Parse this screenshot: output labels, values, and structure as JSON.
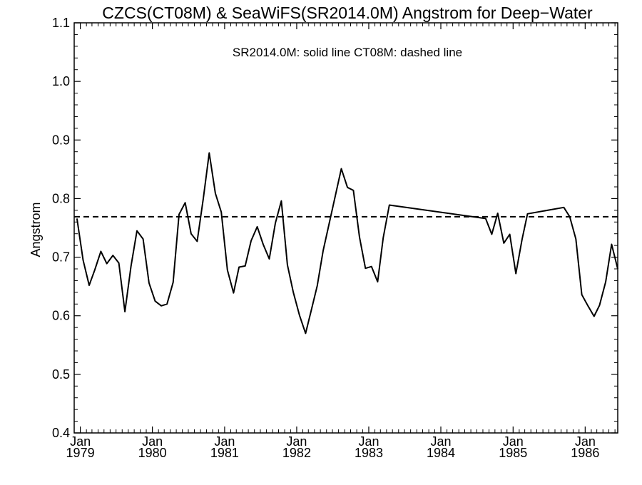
{
  "chart_data": {
    "type": "line",
    "title": "CZCS(CT08M) & SeaWiFS(SR2014.0M)  Angstrom for Deep−Water",
    "subtitle": "SR2014.0M: solid line   CT08M: dashed line",
    "ylabel": "Angstrom",
    "xlabel": "",
    "ylim": [
      0.4,
      1.1
    ],
    "xlim": [
      "1978-12-01",
      "1986-06-15"
    ],
    "yticks": [
      "0.4",
      "0.5",
      "0.6",
      "0.7",
      "0.8",
      "0.9",
      "1.0",
      "1.1"
    ],
    "xticks": [
      {
        "month": "Jan",
        "year": "1979",
        "date": "1979-01-01"
      },
      {
        "month": "Jan",
        "year": "1980",
        "date": "1980-01-01"
      },
      {
        "month": "Jan",
        "year": "1981",
        "date": "1981-01-01"
      },
      {
        "month": "Jan",
        "year": "1982",
        "date": "1982-01-01"
      },
      {
        "month": "Jan",
        "year": "1983",
        "date": "1983-01-01"
      },
      {
        "month": "Jan",
        "year": "1984",
        "date": "1984-01-01"
      },
      {
        "month": "Jan",
        "year": "1985",
        "date": "1985-01-01"
      },
      {
        "month": "Jan",
        "year": "1986",
        "date": "1986-01-01"
      }
    ],
    "grid": false,
    "series": [
      {
        "name": "SR2014.0M",
        "style": "solid",
        "color": "#000000",
        "x": [
          "1978-12-15",
          "1979-01-15",
          "1979-02-15",
          "1979-03-15",
          "1979-04-15",
          "1979-05-15",
          "1979-06-15",
          "1979-07-15",
          "1979-08-15",
          "1979-09-15",
          "1979-10-15",
          "1979-11-15",
          "1979-12-15",
          "1980-01-15",
          "1980-02-15",
          "1980-03-15",
          "1980-04-15",
          "1980-05-15",
          "1980-06-15",
          "1980-07-15",
          "1980-08-15",
          "1980-09-15",
          "1980-10-15",
          "1980-11-15",
          "1980-12-15",
          "1981-01-15",
          "1981-02-15",
          "1981-03-15",
          "1981-04-15",
          "1981-05-15",
          "1981-06-15",
          "1981-07-15",
          "1981-08-15",
          "1981-09-15",
          "1981-10-15",
          "1981-11-15",
          "1981-12-15",
          "1982-01-15",
          "1982-02-15",
          "1982-03-15",
          "1982-04-15",
          "1982-05-15",
          "1982-08-15",
          "1982-09-15",
          "1982-10-15",
          "1982-11-15",
          "1982-12-15",
          "1983-01-15",
          "1983-02-15",
          "1983-03-15",
          "1983-04-15",
          "1984-08-15",
          "1984-09-15",
          "1984-10-15",
          "1984-11-15",
          "1984-12-15",
          "1985-01-15",
          "1985-02-15",
          "1985-03-15",
          "1985-09-15",
          "1985-10-15",
          "1985-11-15",
          "1985-12-15",
          "1986-01-15",
          "1986-02-15",
          "1986-03-15",
          "1986-04-15",
          "1986-05-15",
          "1986-06-15"
        ],
        "y": [
          0.766,
          0.695,
          0.652,
          0.678,
          0.71,
          0.689,
          0.703,
          0.69,
          0.607,
          0.685,
          0.745,
          0.731,
          0.656,
          0.625,
          0.617,
          0.62,
          0.657,
          0.773,
          0.793,
          0.74,
          0.727,
          0.8,
          0.878,
          0.809,
          0.777,
          0.678,
          0.639,
          0.683,
          0.685,
          0.728,
          0.752,
          0.722,
          0.697,
          0.758,
          0.796,
          0.687,
          0.64,
          0.601,
          0.57,
          0.608,
          0.651,
          0.711,
          0.851,
          0.819,
          0.814,
          0.734,
          0.681,
          0.684,
          0.658,
          0.733,
          0.789,
          0.766,
          0.739,
          0.775,
          0.724,
          0.739,
          0.672,
          0.73,
          0.774,
          0.785,
          0.769,
          0.731,
          0.636,
          0.617,
          0.599,
          0.618,
          0.658,
          0.722,
          0.68
        ]
      },
      {
        "name": "CT08M",
        "style": "dashed",
        "color": "#000000",
        "x": [
          "1978-12-01",
          "1986-06-15"
        ],
        "y": [
          0.769,
          0.769
        ]
      }
    ]
  }
}
